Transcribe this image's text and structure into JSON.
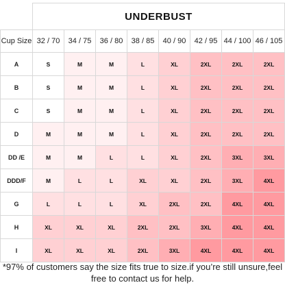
{
  "title": "UNDERBUST",
  "header": {
    "cup_label": "Cup Size",
    "columns": [
      "32 / 70",
      "34 / 75",
      "36 / 80",
      "38 / 85",
      "40 / 90",
      "42 / 95",
      "44 / 100",
      "46 / 105"
    ]
  },
  "rows": [
    {
      "cup": "A",
      "sizes": [
        "S",
        "M",
        "M",
        "L",
        "XL",
        "2XL",
        "2XL",
        "2XL"
      ]
    },
    {
      "cup": "B",
      "sizes": [
        "S",
        "M",
        "M",
        "L",
        "XL",
        "2XL",
        "2XL",
        "2XL"
      ]
    },
    {
      "cup": "C",
      "sizes": [
        "S",
        "M",
        "M",
        "L",
        "XL",
        "2XL",
        "2XL",
        "2XL"
      ]
    },
    {
      "cup": "D",
      "sizes": [
        "M",
        "M",
        "M",
        "L",
        "XL",
        "2XL",
        "2XL",
        "2XL"
      ]
    },
    {
      "cup": "DD /E",
      "sizes": [
        "M",
        "M",
        "L",
        "L",
        "XL",
        "2XL",
        "3XL",
        "3XL"
      ]
    },
    {
      "cup": "DDD/F",
      "sizes": [
        "M",
        "L",
        "L",
        "XL",
        "XL",
        "2XL",
        "3XL",
        "4XL"
      ]
    },
    {
      "cup": "G",
      "sizes": [
        "L",
        "L",
        "L",
        "XL",
        "2XL",
        "2XL",
        "4XL",
        "4XL"
      ]
    },
    {
      "cup": "H",
      "sizes": [
        "XL",
        "XL",
        "XL",
        "2XL",
        "2XL",
        "3XL",
        "4XL",
        "4XL"
      ]
    },
    {
      "cup": "I",
      "sizes": [
        "XL",
        "XL",
        "XL",
        "2XL",
        "3XL",
        "4XL",
        "4XL",
        "4XL"
      ]
    }
  ],
  "size_colors": {
    "S": "#ffffff",
    "M": "#fff0f1",
    "L": "#ffe0e2",
    "XL": "#ffd0d3",
    "2XL": "#ffc0c4",
    "3XL": "#ffaeb3",
    "4XL": "#ff9aa0"
  },
  "footnote": "*97% of customers say the size fits true to size.if you’re still unsure,feel free to contact us for help."
}
